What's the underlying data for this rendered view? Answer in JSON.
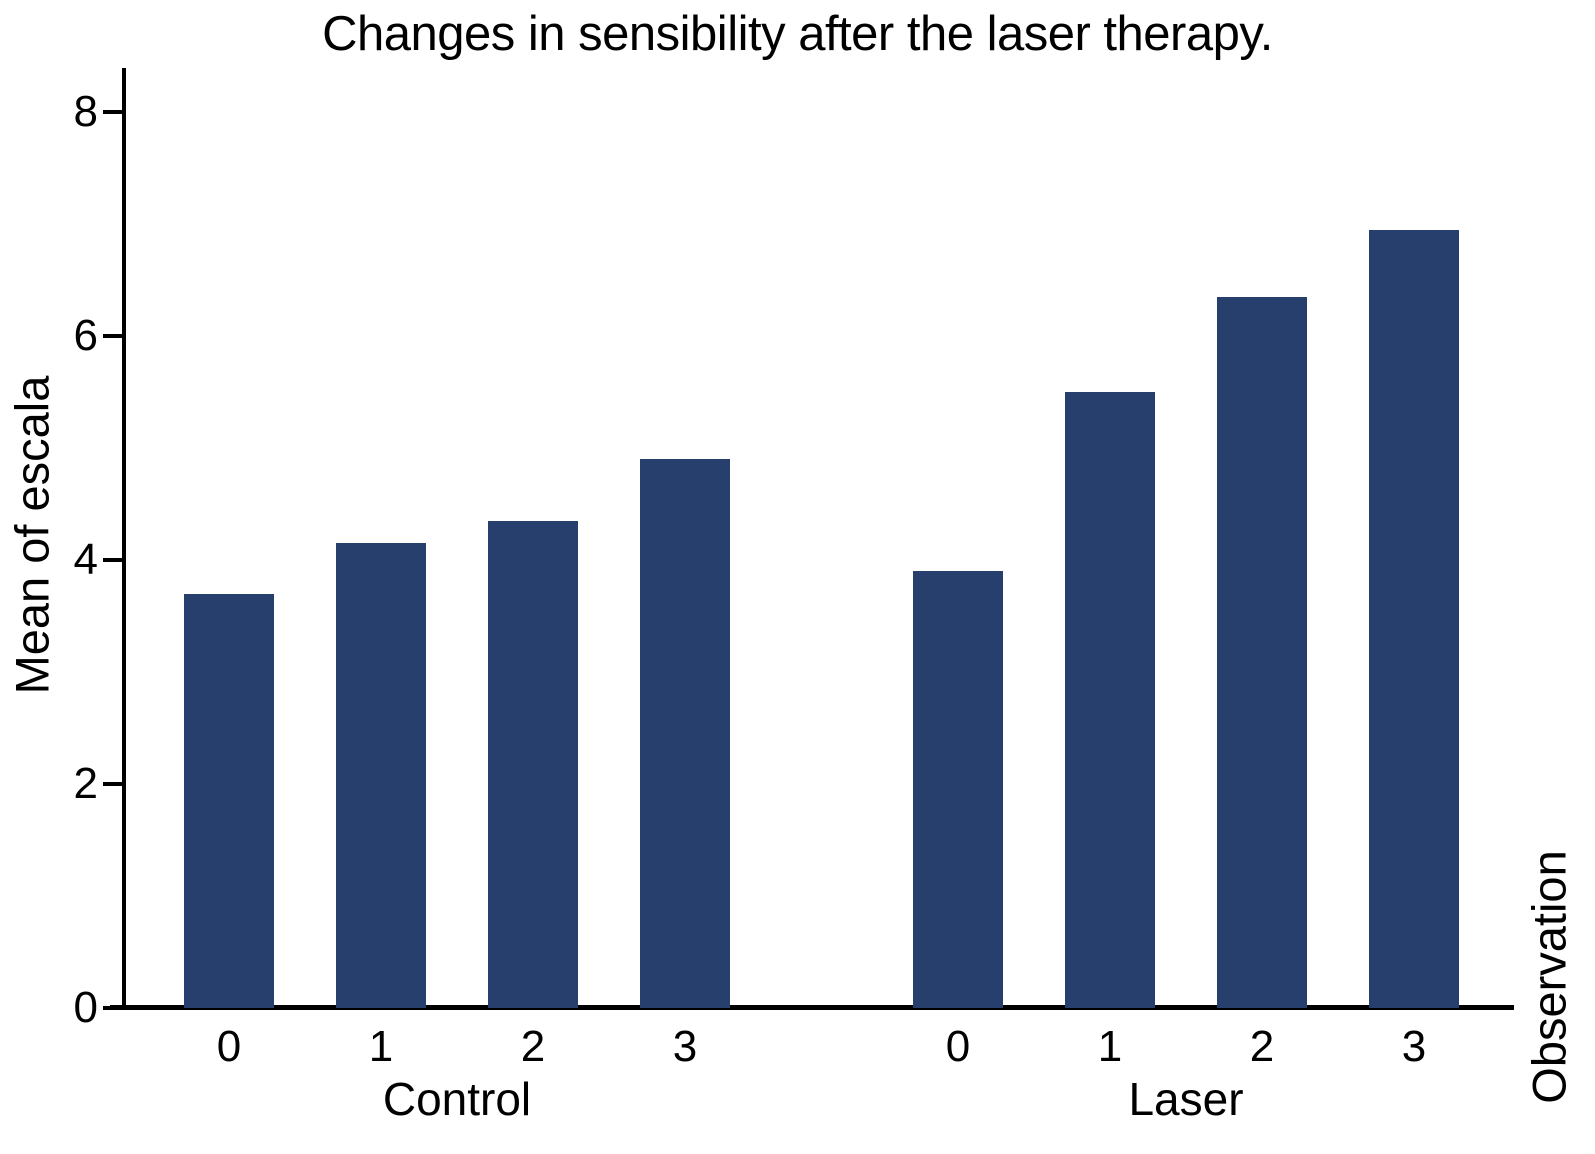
{
  "chart_data": {
    "type": "bar",
    "title": "Changes in sensibility after the laser therapy.",
    "ylabel": "Mean of escala",
    "xlabel": "Observation",
    "ylim": [
      0,
      8
    ],
    "yticks": [
      0,
      2,
      4,
      6,
      8
    ],
    "grid": false,
    "legend_position": "none",
    "bar_color": "#263f6d",
    "axis_color": "#000000",
    "groups": [
      {
        "label": "Control",
        "categories": [
          "0",
          "1",
          "2",
          "3"
        ],
        "values": [
          3.7,
          4.15,
          4.35,
          4.9
        ]
      },
      {
        "label": "Laser",
        "categories": [
          "0",
          "1",
          "2",
          "3"
        ],
        "values": [
          3.9,
          5.5,
          6.35,
          6.95
        ]
      }
    ]
  }
}
